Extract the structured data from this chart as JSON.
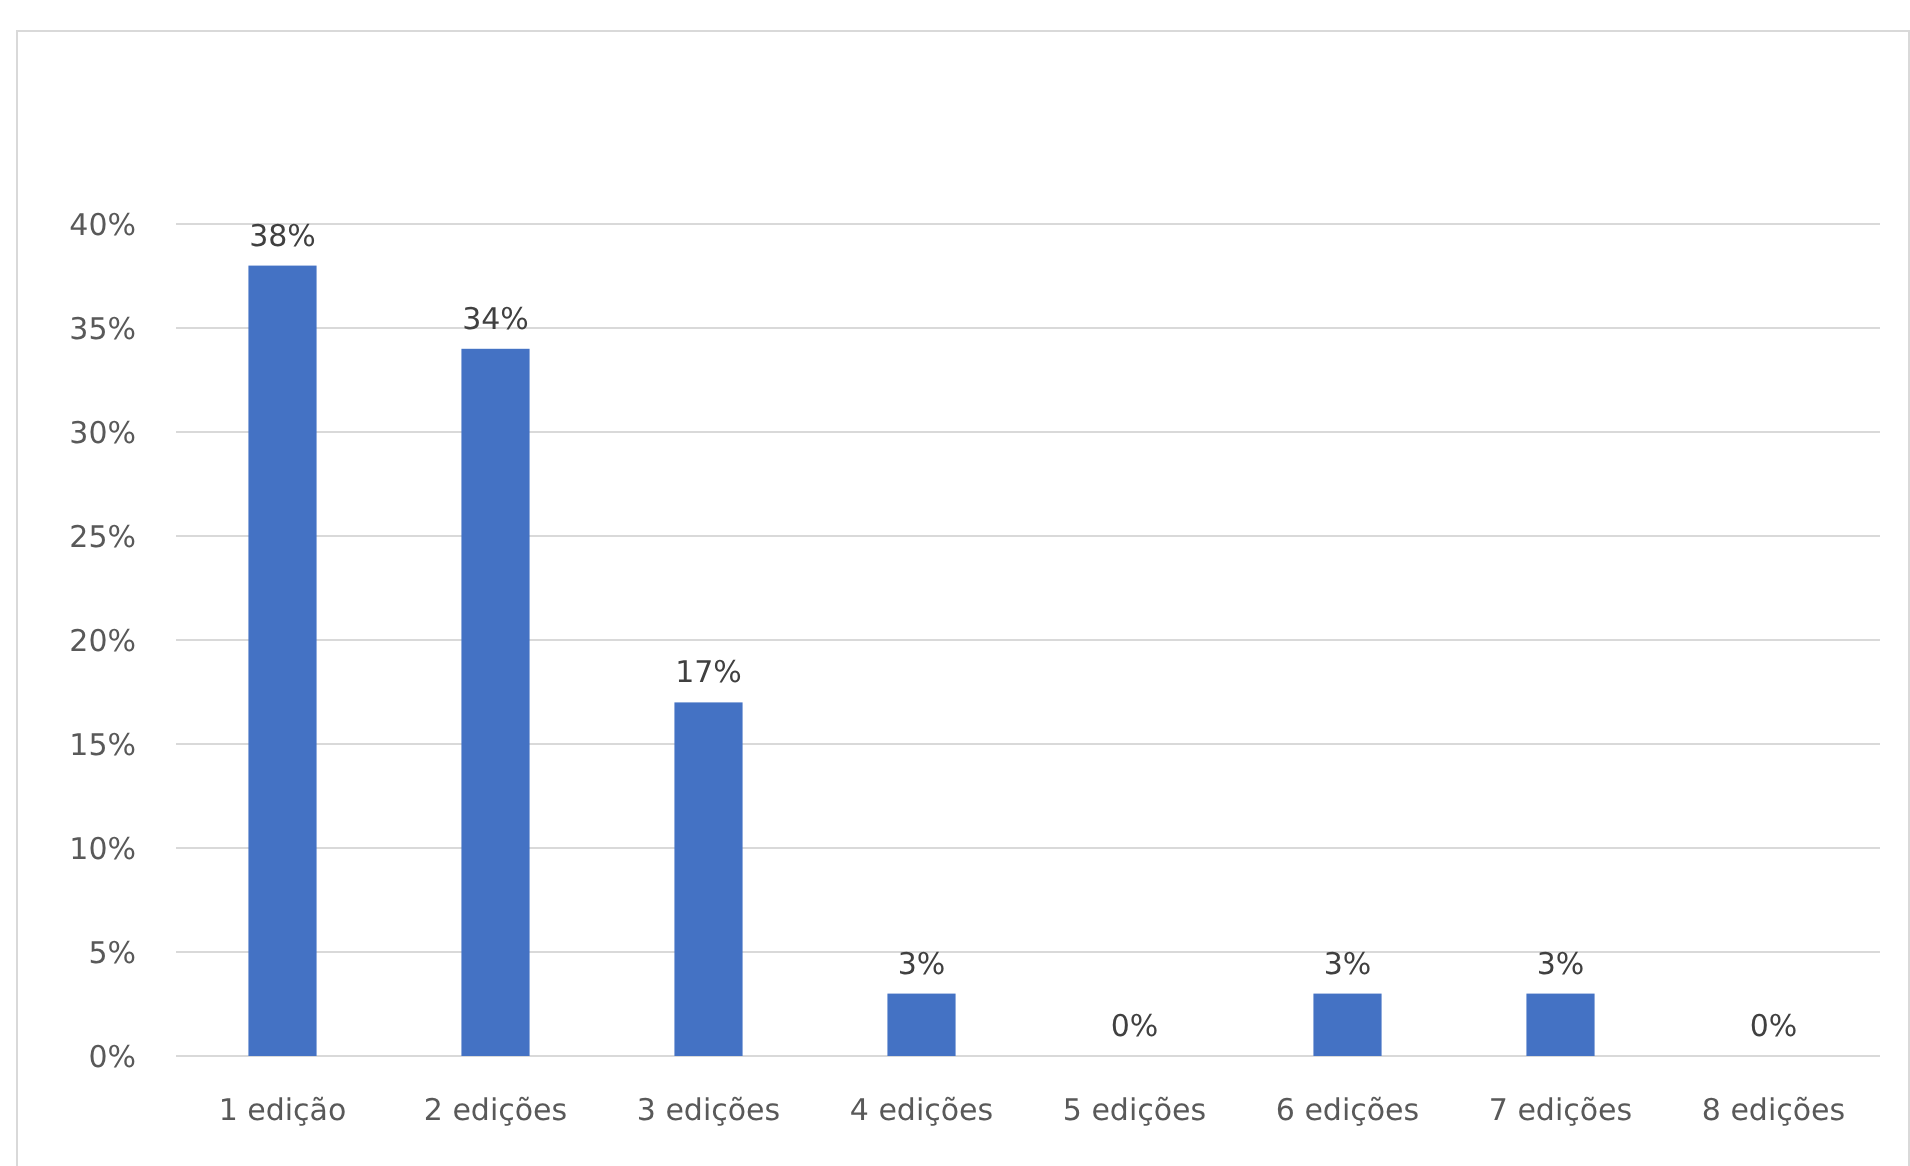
{
  "chart_data": {
    "type": "bar",
    "categories": [
      "1 edição",
      "2 edições",
      "3 edições",
      "4 edições",
      "5 edições",
      "6 edições",
      "7 edições",
      "8 edições"
    ],
    "values": [
      38,
      34,
      17,
      3,
      0,
      3,
      3,
      0
    ],
    "color": "#4472c4",
    "ylim": [
      0,
      40
    ],
    "yticks": [
      {
        "value": 0,
        "label": "0%"
      },
      {
        "value": 5,
        "label": "5%"
      },
      {
        "value": 10,
        "label": "10%"
      },
      {
        "value": 15,
        "label": "15%"
      },
      {
        "value": 20,
        "label": "20%"
      },
      {
        "value": 25,
        "label": "25%"
      },
      {
        "value": 30,
        "label": "30%"
      },
      {
        "value": 35,
        "label": "35%"
      },
      {
        "value": 40,
        "label": "40%"
      }
    ],
    "value_labels": [
      "38%",
      "34%",
      "17%",
      "3%",
      "0%",
      "3%",
      "3%",
      "0%"
    ],
    "grid": "y"
  }
}
